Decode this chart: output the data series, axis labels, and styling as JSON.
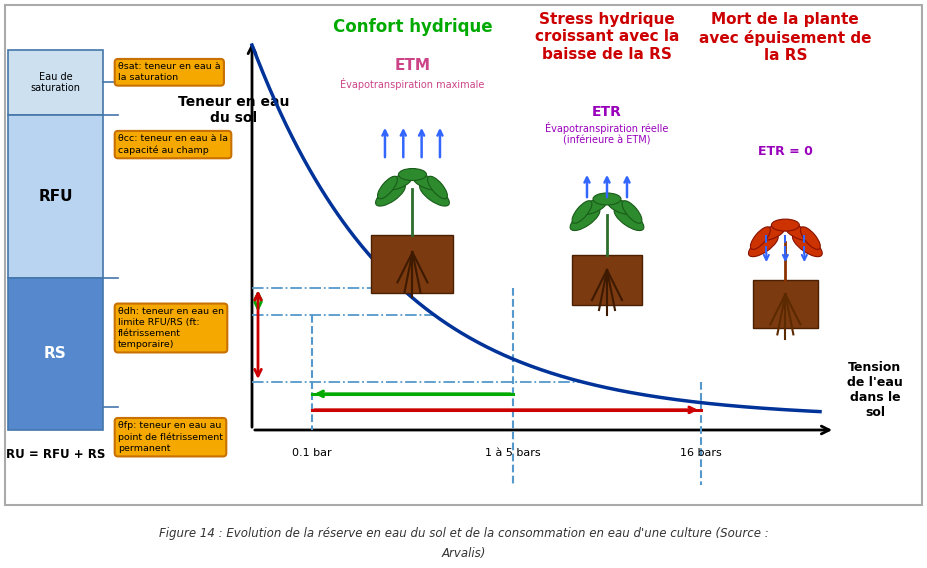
{
  "caption_line1": "Figure 14 : Evolution de la réserve en eau du sol et de la consommation en eau d'une culture (Source :",
  "caption_line2": "Arvalis)",
  "bg_color": "#ffffff",
  "header_green": "Confort hydrique",
  "header_red": "Stress hydrique\ncroissant avec la\nbaisse de la RS",
  "header_dark_red": "Mort de la plante\navec épuisement de\nla RS",
  "etm_label": "ETM",
  "etm_sub": "Évapotranspiration maximale",
  "etr_label": "ETR",
  "etr_sub": "Évapotranspiration réelle\n(inférieure à ETM)",
  "etr0_label": "ETR = 0",
  "ylabel": "Teneur en eau\ndu sol",
  "xlabel": "Tension\nde l'eau\ndans le\nsol",
  "bar01": "0.1 bar",
  "bar15": "1 à 5 bars",
  "bar16": "16 bars",
  "ru_label": "RU = RFU + RS",
  "soil_labels": [
    "Eau de\nsaturation",
    "RFU",
    "RS"
  ],
  "theta_sat": "θsat: teneur en eau à\nla saturation",
  "theta_cc": "θcc: teneur en eau à la\ncapacité au champ",
  "theta_dh": "θdh: teneur en eau en\nlimite RFU/RS (ft:\nflétrissement\ntemporaire)",
  "theta_fp": "θfp: teneur en eau au\npoint de flétrissement\npermanent",
  "curve_color": "#003399",
  "green_color": "#00aa00",
  "red_color": "#cc0000",
  "purple_color": "#9900bb",
  "pink_color": "#cc4488",
  "dash_color": "#5599cc",
  "blue_arrow_color": "#3366ff"
}
